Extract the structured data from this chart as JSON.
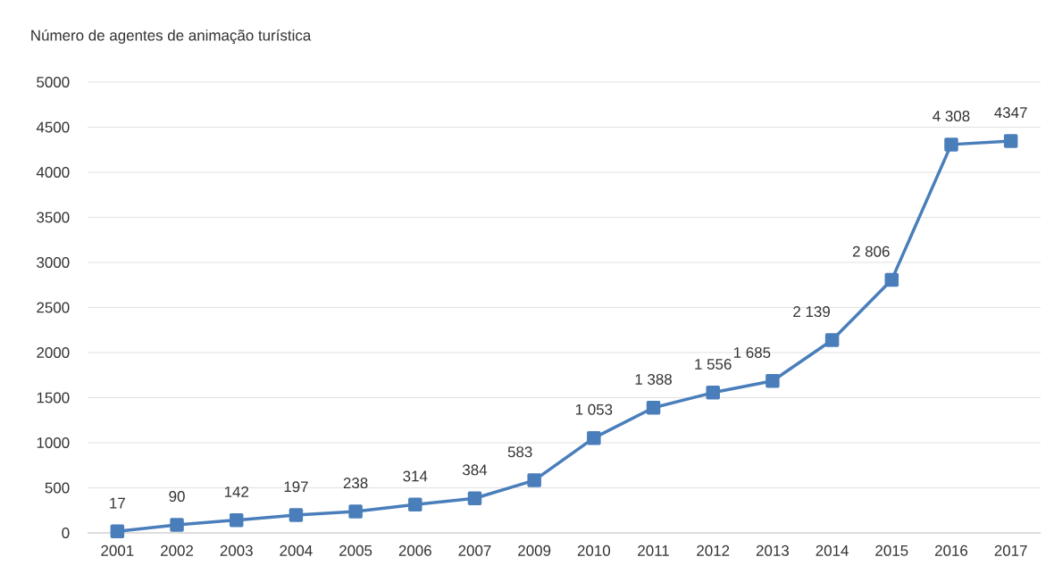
{
  "chart_data": {
    "type": "line",
    "title": "Número de agentes de animação turística",
    "categories": [
      "2001",
      "2002",
      "2003",
      "2004",
      "2005",
      "2006",
      "2007",
      "2009",
      "2010",
      "2011",
      "2012",
      "2013",
      "2014",
      "2015",
      "2016",
      "2017"
    ],
    "values": [
      17,
      90,
      142,
      197,
      238,
      314,
      384,
      583,
      1053,
      1388,
      1556,
      1685,
      2139,
      2806,
      4308,
      4347
    ],
    "value_labels": [
      "17",
      "90",
      "142",
      "197",
      "238",
      "314",
      "384",
      "583",
      "1 053",
      "1 388",
      "1 556",
      "1 685",
      "2 139",
      "2 806",
      "4 308",
      "4347"
    ],
    "color": "#4a7ebb",
    "ylim": [
      0,
      5000
    ],
    "yticks": [
      0,
      500,
      1000,
      1500,
      2000,
      2500,
      3000,
      3500,
      4000,
      4500,
      5000
    ],
    "grid": "y",
    "marker": "square",
    "line_style": "solid"
  }
}
